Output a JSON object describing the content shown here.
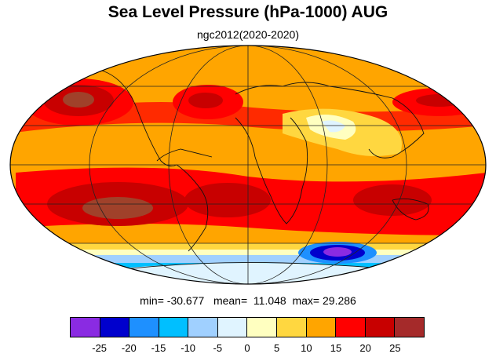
{
  "title": "Sea Level Pressure (hPa-1000) AUG",
  "subtitle": "ngc2012(2020-2020)",
  "stats": {
    "min_label": "min=",
    "min_value": "-30.677",
    "mean_label": "mean=",
    "mean_value": "11.048",
    "max_label": "max=",
    "max_value": "29.286"
  },
  "map": {
    "projection": "mollweide",
    "field": "sea level pressure anomaly (hPa-1000)",
    "features": [
      "coastlines",
      "lat-lon grid lines"
    ]
  },
  "colorbar": {
    "colors": [
      "#8a2be2",
      "#0000cd",
      "#1e90ff",
      "#00bfff",
      "#a0d0ff",
      "#e0f4ff",
      "#ffffc0",
      "#ffd740",
      "#ffa500",
      "#ff0000",
      "#c80000",
      "#a52a2a"
    ],
    "labels": [
      "-25",
      "-20",
      "-15",
      "-10",
      "-5",
      "0",
      "5",
      "10",
      "15",
      "20",
      "25"
    ]
  }
}
